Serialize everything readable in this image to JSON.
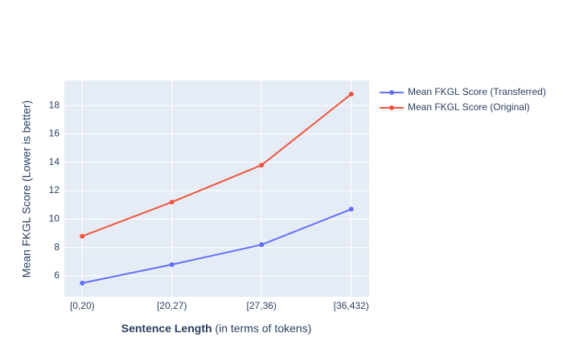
{
  "chart_data": {
    "type": "line",
    "x_label": "Sentence Length",
    "x_label_note": "(in terms of tokens)",
    "y_label": "Mean FKGL Score (Lower is better)",
    "categories": [
      "[0,20)",
      "[20,27)",
      "[27,36)",
      "[36,432)"
    ],
    "series": [
      {
        "name": "Mean FKGL Score (Transferred)",
        "color": "#636efa",
        "values": [
          5.5,
          6.8,
          8.2,
          10.7
        ]
      },
      {
        "name": "Mean FKGL Score (Original)",
        "color": "#ef553b",
        "values": [
          8.8,
          11.2,
          13.8,
          18.8
        ]
      }
    ],
    "ylim": [
      4.53,
      19.76
    ],
    "yticks": [
      6,
      8,
      10,
      12,
      14,
      16,
      18
    ],
    "grid": true,
    "legend": "top-right"
  }
}
